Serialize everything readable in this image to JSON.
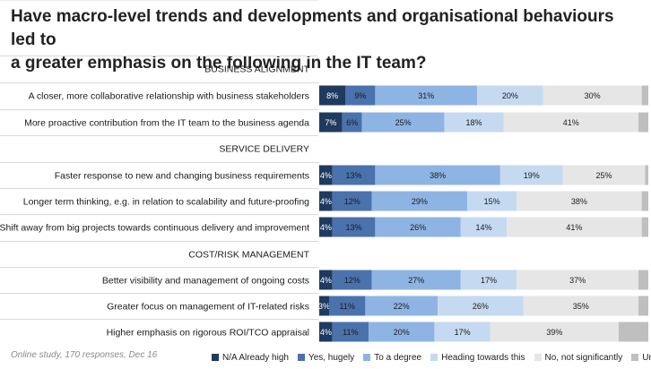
{
  "title": {
    "line1": "Have macro-level trends and developments and organisational behaviours led to",
    "line2": "a greater emphasis on the following in the IT team?"
  },
  "footnote": "Online study, 170 responses, Dec 16",
  "chart_data": {
    "type": "bar",
    "orientation": "horizontal-stacked-100",
    "xlim": [
      0,
      100
    ],
    "series": [
      {
        "name": "N/A Already high",
        "color": "#1f3a5f",
        "text_color": "#ffffff"
      },
      {
        "name": "Yes, hugely",
        "color": "#4a72ad",
        "text_color": "#1a1a1a"
      },
      {
        "name": "To a degree",
        "color": "#8eb4e3",
        "text_color": "#1a1a1a"
      },
      {
        "name": "Heading towards this",
        "color": "#c5d9f1",
        "text_color": "#1a1a1a"
      },
      {
        "name": "No, not significantly",
        "color": "#e6e6e6",
        "text_color": "#1a1a1a"
      },
      {
        "name": "Unsure",
        "color": "#bfbfbf",
        "text_color": "#1a1a1a"
      }
    ],
    "rows": [
      {
        "kind": "section",
        "label": "BUSINESS ALIGNMENT"
      },
      {
        "kind": "bar",
        "label": "A closer, more collaborative relationship with business stakeholders",
        "values": [
          8,
          9,
          31,
          20,
          30,
          2
        ],
        "labels": [
          "8%",
          "9%",
          "31%",
          "20%",
          "30%",
          ""
        ]
      },
      {
        "kind": "bar",
        "label": "More proactive contribution from the IT team to the business agenda",
        "values": [
          7,
          6,
          25,
          18,
          41,
          3
        ],
        "labels": [
          "7%",
          "6%",
          "25%",
          "18%",
          "41%",
          ""
        ]
      },
      {
        "kind": "section",
        "label": "SERVICE DELIVERY"
      },
      {
        "kind": "bar",
        "label": "Faster response to new and changing business requirements",
        "values": [
          4,
          13,
          38,
          19,
          25,
          1
        ],
        "labels": [
          "4%",
          "13%",
          "38%",
          "19%",
          "25%",
          ""
        ]
      },
      {
        "kind": "bar",
        "label": "Longer term thinking, e.g. in relation to scalability and future-proofing",
        "values": [
          4,
          12,
          29,
          15,
          38,
          2
        ],
        "labels": [
          "4%",
          "12%",
          "29%",
          "15%",
          "38%",
          ""
        ]
      },
      {
        "kind": "bar",
        "label": "Shift away from big projects towards continuous delivery and improvement",
        "values": [
          4,
          13,
          26,
          14,
          41,
          2
        ],
        "labels": [
          "4%",
          "13%",
          "26%",
          "14%",
          "41%",
          ""
        ]
      },
      {
        "kind": "section",
        "label": "COST/RISK MANAGEMENT"
      },
      {
        "kind": "bar",
        "label": "Better visibility and management of ongoing costs",
        "values": [
          4,
          12,
          27,
          17,
          37,
          3
        ],
        "labels": [
          "4%",
          "12%",
          "27%",
          "17%",
          "37%",
          ""
        ]
      },
      {
        "kind": "bar",
        "label": "Greater focus on management of IT-related risks",
        "values": [
          3,
          11,
          22,
          26,
          35,
          3
        ],
        "labels": [
          "3%",
          "11%",
          "22%",
          "26%",
          "35%",
          ""
        ]
      },
      {
        "kind": "bar",
        "label": "Higher emphasis on rigorous ROI/TCO appraisal",
        "values": [
          4,
          11,
          20,
          17,
          39,
          9
        ],
        "labels": [
          "4%",
          "11%",
          "20%",
          "17%",
          "39%",
          ""
        ]
      }
    ]
  }
}
